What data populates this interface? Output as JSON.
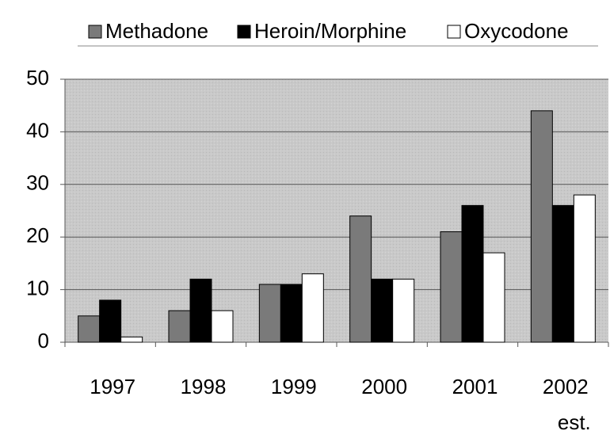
{
  "chart_data": {
    "type": "bar",
    "categories": [
      "1997",
      "1998",
      "1999",
      "2000",
      "2001",
      "2002\nest."
    ],
    "series": [
      {
        "name": "Methadone",
        "color": "#7a7a7a",
        "values": [
          5,
          6,
          11,
          24,
          21,
          44
        ]
      },
      {
        "name": "Heroin/Morphine",
        "color": "#000000",
        "values": [
          8,
          12,
          11,
          12,
          26,
          26
        ]
      },
      {
        "name": "Oxycodone",
        "color": "#ffffff",
        "values": [
          1,
          6,
          13,
          12,
          17,
          28
        ]
      }
    ],
    "ylim": [
      0,
      50
    ],
    "yticks": [
      0,
      10,
      20,
      30,
      40,
      50
    ],
    "grid": true,
    "legend": "top"
  }
}
